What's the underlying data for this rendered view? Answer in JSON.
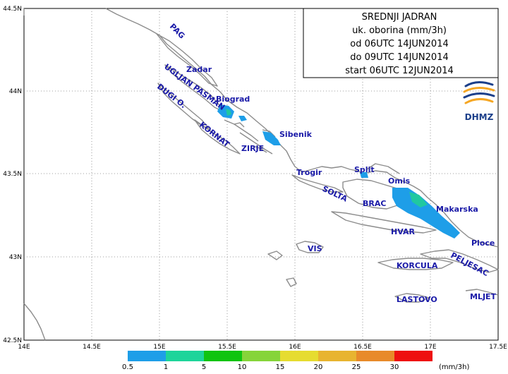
{
  "title_box": {
    "lines": [
      "SREDNJI JADRAN",
      "uk. oborina (mm/3h)",
      "od 06UTC 14JUN2014",
      "do 09UTC 14JUN2014",
      "start 06UTC 12JUN2014"
    ]
  },
  "logo": {
    "text": "DHMZ",
    "colors": [
      "#1b3f8a",
      "#f5a623"
    ]
  },
  "axes": {
    "lon_ticks": [
      "14E",
      "14.5E",
      "15E",
      "15.5E",
      "16E",
      "16.5E",
      "17E",
      "17.5E"
    ],
    "lat_ticks": [
      "44.5N",
      "44N",
      "43.5N",
      "43N",
      "42.5N"
    ]
  },
  "places": [
    {
      "id": "pag",
      "text": "PAG",
      "rotate": 45
    },
    {
      "id": "zadar",
      "text": "Zadar",
      "rotate": 0
    },
    {
      "id": "ugljan-pasman",
      "text": "UGLJAN PASMAN",
      "rotate": 36
    },
    {
      "id": "dugi-o",
      "text": "DUGI O.",
      "rotate": 38
    },
    {
      "id": "biograd",
      "text": "Biograd",
      "rotate": 0
    },
    {
      "id": "kornat",
      "text": "KORNAT",
      "rotate": 38
    },
    {
      "id": "zirje",
      "text": "ZIRJE",
      "rotate": 0
    },
    {
      "id": "sibenik",
      "text": "Sibenik",
      "rotate": 0
    },
    {
      "id": "trogir",
      "text": "Trogir",
      "rotate": 0
    },
    {
      "id": "split",
      "text": "Split",
      "rotate": 0
    },
    {
      "id": "omis",
      "text": "Omis",
      "rotate": 0
    },
    {
      "id": "solta",
      "text": "SOLTA",
      "rotate": 25
    },
    {
      "id": "brac",
      "text": "BRAC",
      "rotate": 0
    },
    {
      "id": "makarska",
      "text": "Makarska",
      "rotate": 0
    },
    {
      "id": "hvar",
      "text": "HVAR",
      "rotate": 0
    },
    {
      "id": "vis",
      "text": "VIS",
      "rotate": 0
    },
    {
      "id": "ploce",
      "text": "Ploce",
      "rotate": 0
    },
    {
      "id": "peljesac",
      "text": "PELJESAC",
      "rotate": 28
    },
    {
      "id": "korcula",
      "text": "KORCULA",
      "rotate": 0
    },
    {
      "id": "mljet",
      "text": "MLJET",
      "rotate": 0
    },
    {
      "id": "lastovo",
      "text": "LASTOVO",
      "rotate": 0
    }
  ],
  "legend": {
    "unit": "(mm/3h)",
    "labels": [
      "0.5",
      "1",
      "5",
      "10",
      "15",
      "20",
      "25",
      "30"
    ],
    "colors": [
      "#1e9ee8",
      "#1ed49a",
      "#10c410",
      "#86d43a",
      "#e6dc30",
      "#e8b430",
      "#e88a2a",
      "#ee1010"
    ]
  },
  "precip_colors": {
    "light": "#1e9ee8",
    "moderate": "#20c8a0"
  }
}
